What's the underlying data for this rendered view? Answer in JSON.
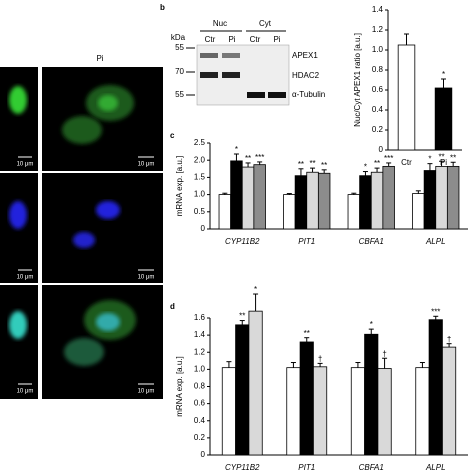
{
  "micrographs": {
    "column_label": "Pi",
    "scale_bars": [
      "10 μm",
      "10 μm",
      "10 μm",
      "10 μm",
      "10 μm",
      "10 μm"
    ]
  },
  "blot": {
    "unit": "kDa",
    "markers": [
      "55",
      "70",
      "55"
    ],
    "groups": [
      "Nuc",
      "Cyt"
    ],
    "lanes": [
      "Ctr",
      "Pi",
      "Ctr",
      "Pi"
    ],
    "proteins": [
      "APEX1",
      "HDAC2",
      "α-Tubulin"
    ]
  },
  "chart_data": [
    {
      "type": "bar",
      "panel": "b",
      "ylabel": "Nuc/Cyt APEX1 ratio [a.u.]",
      "categories": [
        "Ctr",
        "Pi"
      ],
      "values": [
        1.05,
        0.62
      ],
      "errors": [
        0.11,
        0.09
      ],
      "annotations": [
        null,
        "*"
      ],
      "colors": [
        "#ffffff",
        "#000000"
      ],
      "ylim": [
        0,
        1.4
      ],
      "yticks": [
        0,
        0.2,
        0.4,
        0.6,
        0.8,
        {
          "value": 1,
          "label": "1.0"
        },
        1.2,
        1.4
      ]
    },
    {
      "type": "bar",
      "panel": "c",
      "ylabel": "mRNA exp. [a.u.]",
      "categories": [
        "CYP11B2",
        "PIT1",
        "CBFA1",
        "ALPL"
      ],
      "series": [
        {
          "color": "#ffffff",
          "values": [
            1.0,
            1.0,
            1.0,
            1.03
          ],
          "errors": [
            0.04,
            0.03,
            0.04,
            0.08
          ],
          "annotations": [
            null,
            null,
            null,
            null
          ]
        },
        {
          "color": "#000000",
          "values": [
            1.98,
            1.55,
            1.55,
            1.7
          ],
          "errors": [
            0.2,
            0.2,
            0.12,
            0.2
          ],
          "annotations": [
            "*",
            "**",
            "*",
            "*"
          ]
        },
        {
          "color": "#d9d9d9",
          "values": [
            1.8,
            1.65,
            1.65,
            1.82
          ],
          "errors": [
            0.12,
            0.12,
            0.12,
            0.15
          ],
          "annotations": [
            "**",
            "**",
            "**",
            "**"
          ]
        },
        {
          "color": "#8c8c8c",
          "values": [
            1.87,
            1.62,
            1.82,
            1.82
          ],
          "errors": [
            0.08,
            0.1,
            0.1,
            0.12
          ],
          "annotations": [
            "***",
            "**",
            "***",
            "**"
          ]
        }
      ],
      "ylim": [
        0,
        2.5
      ],
      "yticks": [
        0,
        0.5,
        {
          "value": 1,
          "label": "1.0"
        },
        1.5,
        {
          "value": 2,
          "label": "2.0"
        },
        2.5
      ]
    },
    {
      "type": "bar",
      "panel": "d",
      "ylabel": "mRNA exp. [a.u.]",
      "categories": [
        "CYP11B2",
        "PIT1",
        "CBFA1",
        "ALPL"
      ],
      "series": [
        {
          "color": "#ffffff",
          "values": [
            1.02,
            1.02,
            1.02,
            1.02
          ],
          "errors": [
            0.07,
            0.06,
            0.06,
            0.06
          ],
          "annotations": [
            null,
            null,
            null,
            null
          ]
        },
        {
          "color": "#000000",
          "values": [
            1.52,
            1.32,
            1.41,
            1.58
          ],
          "errors": [
            0.05,
            0.05,
            0.06,
            0.04
          ],
          "annotations": [
            "**",
            "**",
            "*",
            "***"
          ]
        },
        {
          "color": "#d9d9d9",
          "values": [
            1.68,
            1.03,
            1.01,
            1.26
          ],
          "errors": [
            0.2,
            0.04,
            0.12,
            0.04
          ],
          "annotations": [
            "*",
            "†",
            "†",
            "†"
          ]
        }
      ],
      "ylim": [
        0,
        1.6
      ],
      "yticks": [
        0,
        0.2,
        0.4,
        0.6,
        0.8,
        {
          "value": 1,
          "label": "1.0"
        },
        1.2,
        1.4,
        1.6
      ]
    }
  ]
}
